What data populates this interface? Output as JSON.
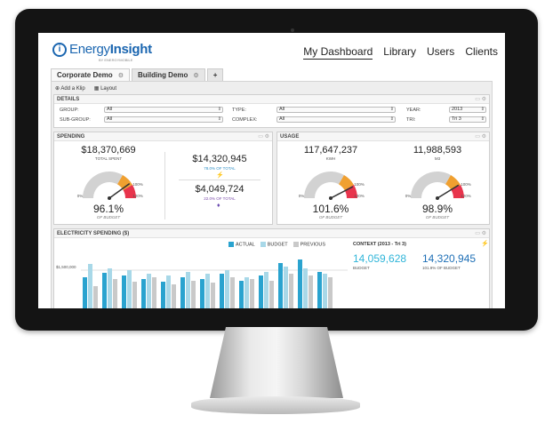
{
  "brand": {
    "name_light": "Energy",
    "name_bold": "Insight",
    "sub": "BY ENERGYMOBILE",
    "mark": "i"
  },
  "nav": [
    "My Dashboard",
    "Library",
    "Users",
    "Clients"
  ],
  "tabs": [
    "Corporate Demo",
    "Building Demo"
  ],
  "tab_add": "+",
  "toolbar": {
    "add": "Add a Klip",
    "layout": "Layout"
  },
  "details": {
    "title": "DETAILS",
    "fields": [
      {
        "label": "GROUP:",
        "value": "All"
      },
      {
        "label": "TYPE:",
        "value": "All"
      },
      {
        "label": "YEAR:",
        "value": "2013"
      },
      {
        "label": "SUB-GROUP:",
        "value": "All"
      },
      {
        "label": "COMPLEX:",
        "value": "All"
      },
      {
        "label": "TRI:",
        "value": "Tri 3"
      }
    ]
  },
  "spending": {
    "title": "SPENDING",
    "total": "$18,370,669",
    "total_label": "TOTAL SPENT",
    "a": "$14,320,945",
    "a_label": "78.0% OF TOTAL",
    "b": "$4,049,724",
    "b_label": "22.0% OF TOTAL",
    "pct": "96.1%",
    "pct_label": "OF BUDGET",
    "g0": "0%",
    "g100": "100%",
    "g120": "120%",
    "gauge_value": 96.1
  },
  "usage": {
    "title": "USAGE",
    "v1": "117,647,237",
    "u1": "KWH",
    "p1": "101.6%",
    "p1_label": "OF BUDGET",
    "gauge1": 101.6,
    "v2": "11,988,593",
    "u2": "M3",
    "p2": "98.9%",
    "p2_label": "OF BUDGET",
    "gauge2": 98.9,
    "g0": "0%",
    "g100": "100%",
    "g120": "120%"
  },
  "elec": {
    "title": "ELECTRICITY SPENDING ($)",
    "legend": [
      "ACTUAL",
      "BUDGET",
      "PREVIOUS"
    ],
    "context": "CONTEXT (2013 - Tri 3)",
    "budget_val": "14,059,628",
    "budget_label": "BUDGET",
    "actual_val": "14,320,945",
    "actual_label": "101.9% OF BUDGET",
    "ytick": "$1,500,000"
  },
  "colors": {
    "actual": "#2aa3cf",
    "budget": "#a8d8e8",
    "previous": "#c9c9c9",
    "gauge_red": "#e8344c",
    "gauge_orange": "#f0a030",
    "gauge_grey": "#d2d2d2"
  }
}
